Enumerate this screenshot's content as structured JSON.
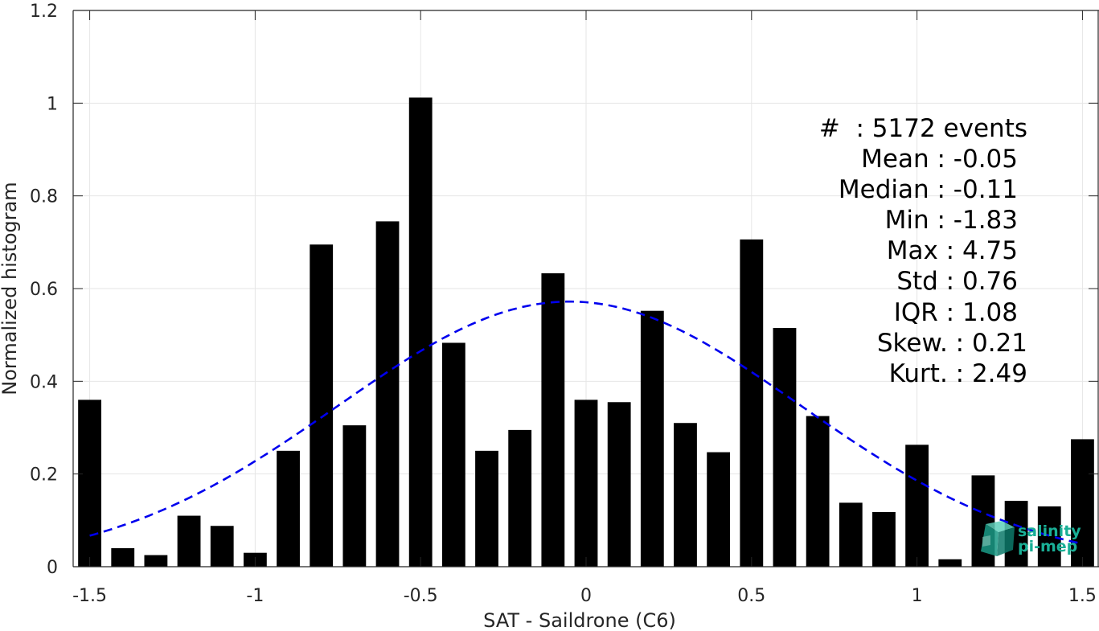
{
  "chart_data": {
    "type": "bar",
    "xlabel": "SAT - Saildrone (C6)",
    "ylabel": "Normalized histogram",
    "xlim": [
      -1.55,
      1.55
    ],
    "ylim": [
      0,
      1.2
    ],
    "grid": true,
    "x_ticks": [
      -1.5,
      -1,
      -0.5,
      0,
      0.5,
      1,
      1.5
    ],
    "x_tick_labels": [
      "-1.5",
      "-1",
      "-0.5",
      "0",
      "0.5",
      "1",
      "1.5"
    ],
    "y_ticks": [
      0,
      0.2,
      0.4,
      0.6,
      0.8,
      1,
      1.2
    ],
    "y_tick_labels": [
      "0",
      "0.2",
      "0.4",
      "0.6",
      "0.8",
      "1",
      "1.2"
    ],
    "bar_width": 0.07,
    "bar_color": "#000000",
    "series": [
      {
        "values": [
          {
            "x": -1.5,
            "y": 0.36
          },
          {
            "x": -1.4,
            "y": 0.04
          },
          {
            "x": -1.3,
            "y": 0.025
          },
          {
            "x": -1.2,
            "y": 0.11
          },
          {
            "x": -1.1,
            "y": 0.088
          },
          {
            "x": -1.0,
            "y": 0.03
          },
          {
            "x": -0.9,
            "y": 0.25
          },
          {
            "x": -0.8,
            "y": 0.695
          },
          {
            "x": -0.7,
            "y": 0.305
          },
          {
            "x": -0.6,
            "y": 0.745
          },
          {
            "x": -0.5,
            "y": 1.012
          },
          {
            "x": -0.4,
            "y": 0.483
          },
          {
            "x": -0.3,
            "y": 0.25
          },
          {
            "x": -0.2,
            "y": 0.295
          },
          {
            "x": -0.1,
            "y": 0.633
          },
          {
            "x": 0.0,
            "y": 0.36
          },
          {
            "x": 0.1,
            "y": 0.355
          },
          {
            "x": 0.2,
            "y": 0.552
          },
          {
            "x": 0.3,
            "y": 0.31
          },
          {
            "x": 0.4,
            "y": 0.247
          },
          {
            "x": 0.5,
            "y": 0.706
          },
          {
            "x": 0.6,
            "y": 0.515
          },
          {
            "x": 0.7,
            "y": 0.325
          },
          {
            "x": 0.8,
            "y": 0.138
          },
          {
            "x": 0.9,
            "y": 0.118
          },
          {
            "x": 1.0,
            "y": 0.263
          },
          {
            "x": 1.1,
            "y": 0.016
          },
          {
            "x": 1.2,
            "y": 0.197
          },
          {
            "x": 1.3,
            "y": 0.142
          },
          {
            "x": 1.4,
            "y": 0.13
          },
          {
            "x": 1.5,
            "y": 0.275
          }
        ]
      }
    ],
    "fit_curve": {
      "type": "gaussian",
      "mean": -0.05,
      "std": 0.7,
      "peak": 0.572,
      "x_range": [
        -1.5,
        1.5
      ],
      "style": "dashed",
      "color": "#0000ee"
    },
    "stats": [
      {
        "label": "#  : 5172 events"
      },
      {
        "label": "Mean : -0.05"
      },
      {
        "label": "Median : -0.11"
      },
      {
        "label": "Min : -1.83"
      },
      {
        "label": "Max : 4.75"
      },
      {
        "label": "Std : 0.76"
      },
      {
        "label": "IQR : 1.08"
      },
      {
        "label": "Skew. : 0.21"
      },
      {
        "label": "Kurt. : 2.49"
      }
    ]
  },
  "logo": {
    "line1": "salinity",
    "line2": "pi-mep",
    "color": "#1aaf96"
  }
}
